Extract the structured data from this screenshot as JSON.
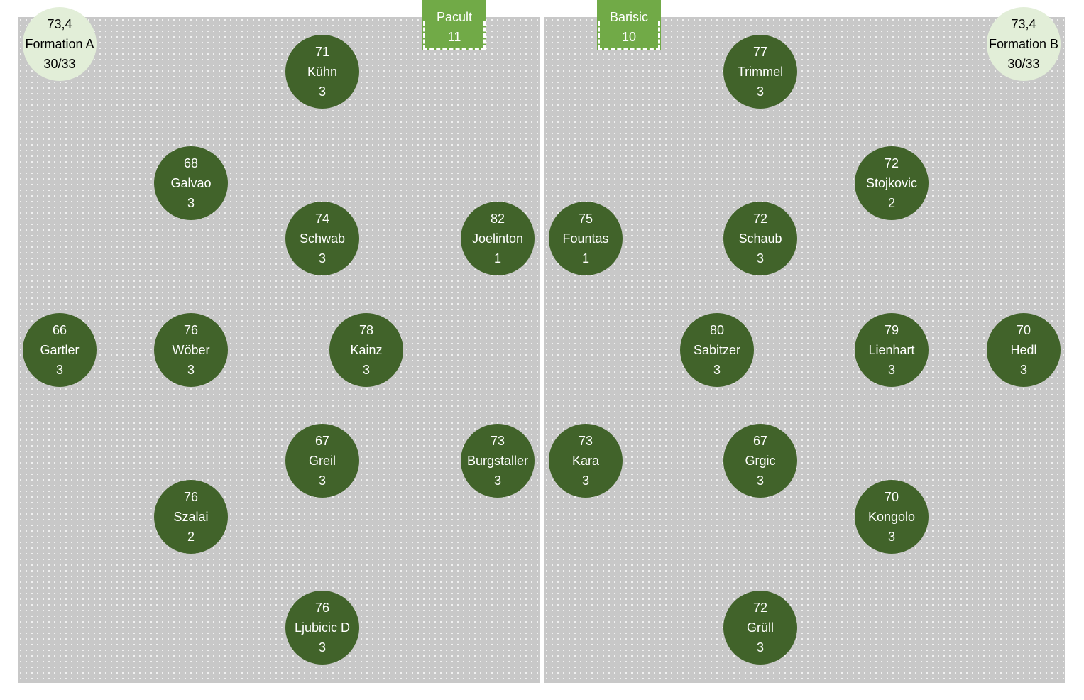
{
  "formation_a": {
    "summary": {
      "avg": "73,4",
      "label": "Formation A",
      "count": "30/33"
    },
    "coach": {
      "name": "Pacult",
      "number": "11"
    },
    "players": [
      {
        "rating": "71",
        "name": "Kühn",
        "num": "3"
      },
      {
        "rating": "68",
        "name": "Galvao",
        "num": "3"
      },
      {
        "rating": "74",
        "name": "Schwab",
        "num": "3"
      },
      {
        "rating": "82",
        "name": "Joelinton",
        "num": "1"
      },
      {
        "rating": "66",
        "name": "Gartler",
        "num": "3"
      },
      {
        "rating": "76",
        "name": "Wöber",
        "num": "3"
      },
      {
        "rating": "78",
        "name": "Kainz",
        "num": "3"
      },
      {
        "rating": "67",
        "name": "Greil",
        "num": "3"
      },
      {
        "rating": "73",
        "name": "Burgstaller",
        "num": "3"
      },
      {
        "rating": "76",
        "name": "Szalai",
        "num": "2"
      },
      {
        "rating": "76",
        "name": "Ljubicic D",
        "num": "3"
      }
    ]
  },
  "formation_b": {
    "summary": {
      "avg": "73,4",
      "label": "Formation B",
      "count": "30/33"
    },
    "coach": {
      "name": "Barisic",
      "number": "10"
    },
    "players": [
      {
        "rating": "77",
        "name": "Trimmel",
        "num": "3"
      },
      {
        "rating": "72",
        "name": "Stojkovic",
        "num": "2"
      },
      {
        "rating": "75",
        "name": "Fountas",
        "num": "1"
      },
      {
        "rating": "72",
        "name": "Schaub",
        "num": "3"
      },
      {
        "rating": "80",
        "name": "Sabitzer",
        "num": "3"
      },
      {
        "rating": "79",
        "name": "Lienhart",
        "num": "3"
      },
      {
        "rating": "70",
        "name": "Hedl",
        "num": "3"
      },
      {
        "rating": "73",
        "name": "Kara",
        "num": "3"
      },
      {
        "rating": "67",
        "name": "Grgic",
        "num": "3"
      },
      {
        "rating": "70",
        "name": "Kongolo",
        "num": "3"
      },
      {
        "rating": "72",
        "name": "Grüll",
        "num": "3"
      }
    ]
  }
}
